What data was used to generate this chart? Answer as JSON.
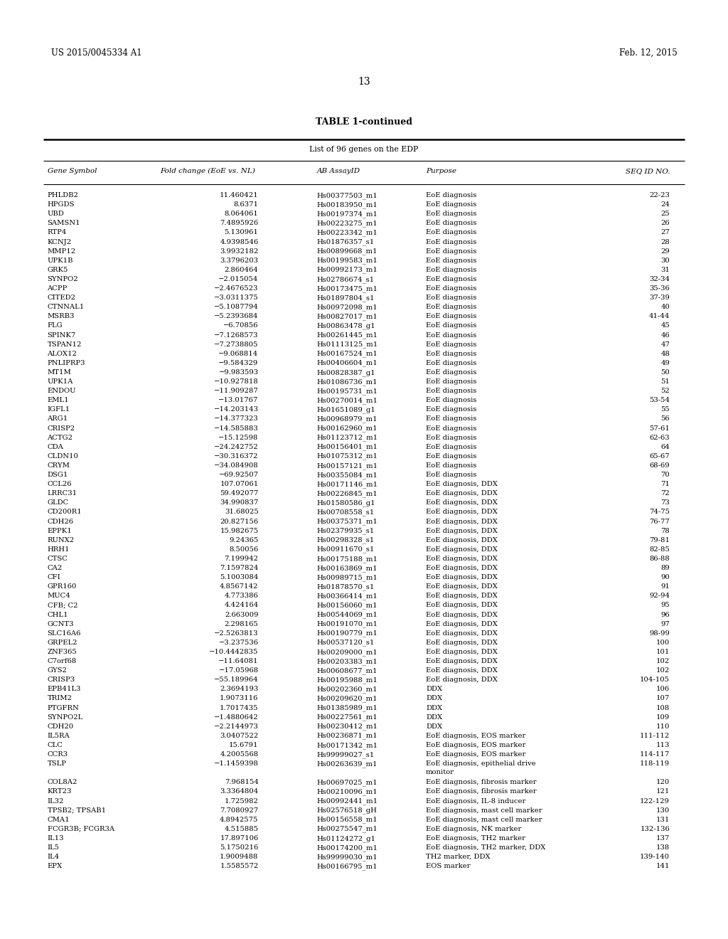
{
  "header_left": "US 2015/0045334 A1",
  "header_right": "Feb. 12, 2015",
  "page_number": "13",
  "table_title": "TABLE 1-continued",
  "table_subtitle": "List of 96 genes on the EDP",
  "col_headers": [
    "Gene Symbol",
    "Fold change (EoE vs. NL)",
    "AB AssayID",
    "Purpose",
    "SEQ ID NO."
  ],
  "rows": [
    [
      "PHLDB2",
      "11.460421",
      "Hs00377503_m1",
      "EoE diagnosis",
      "22-23"
    ],
    [
      "HPGDS",
      "8.6371",
      "Hs00183950_m1",
      "EoE diagnosis",
      "24"
    ],
    [
      "UBD",
      "8.064061",
      "Hs00197374_m1",
      "EoE diagnosis",
      "25"
    ],
    [
      "SAMSN1",
      "7.4895926",
      "Hs00223275_m1",
      "EoE diagnosis",
      "26"
    ],
    [
      "RTP4",
      "5.130961",
      "Hs00223342_m1",
      "EoE diagnosis",
      "27"
    ],
    [
      "KCNJ2",
      "4.9398546",
      "Hs01876357_s1",
      "EoE diagnosis",
      "28"
    ],
    [
      "MMP12",
      "3.9932182",
      "Hs00899668_m1",
      "EoE diagnosis",
      "29"
    ],
    [
      "UPK1B",
      "3.3796203",
      "Hs00199583_m1",
      "EoE diagnosis",
      "30"
    ],
    [
      "GRK5",
      "2.860464",
      "Hs00992173_m1",
      "EoE diagnosis",
      "31"
    ],
    [
      "SYNPO2",
      "−2.015054",
      "Hs02786674_s1",
      "EoE diagnosis",
      "32-34"
    ],
    [
      "ACPP",
      "−2.4676523",
      "Hs00173475_m1",
      "EoE diagnosis",
      "35-36"
    ],
    [
      "CITED2",
      "−3.0311375",
      "Hs01897804_s1",
      "EoE diagnosis",
      "37-39"
    ],
    [
      "CTNNAL1",
      "−5.1087794",
      "Hs00972098_m1",
      "EoE diagnosis",
      "40"
    ],
    [
      "MSRB3",
      "−5.2393684",
      "Hs00827017_m1",
      "EoE diagnosis",
      "41-44"
    ],
    [
      "FLG",
      "−6.70856",
      "Hs00863478_g1",
      "EoE diagnosis",
      "45"
    ],
    [
      "SPINK7",
      "−7.1268573",
      "Hs00261445_m1",
      "EoE diagnosis",
      "46"
    ],
    [
      "TSPAN12",
      "−7.2738805",
      "Hs01113125_m1",
      "EoE diagnosis",
      "47"
    ],
    [
      "ALOX12",
      "−9.068814",
      "Hs00167524_m1",
      "EoE diagnosis",
      "48"
    ],
    [
      "PNLIPRP3",
      "−9.584329",
      "Hs00406604_m1",
      "EoE diagnosis",
      "49"
    ],
    [
      "MT1M",
      "−9.983593",
      "Hs00828387_g1",
      "EoE diagnosis",
      "50"
    ],
    [
      "UPK1A",
      "−10.927818",
      "Hs01086736_m1",
      "EoE diagnosis",
      "51"
    ],
    [
      "ENDOU",
      "−11.909287",
      "Hs00195731_m1",
      "EoE diagnosis",
      "52"
    ],
    [
      "EML1",
      "−13.01767",
      "Hs00270014_m1",
      "EoE diagnosis",
      "53-54"
    ],
    [
      "IGFL1",
      "−14.203143",
      "Hs01651089_g1",
      "EoE diagnosis",
      "55"
    ],
    [
      "ARG1",
      "−14.377323",
      "Hs00968979_m1",
      "EoE diagnosis",
      "56"
    ],
    [
      "CRISP2",
      "−14.585883",
      "Hs00162960_m1",
      "EoE diagnosis",
      "57-61"
    ],
    [
      "ACTG2",
      "−15.12598",
      "Hs01123712_m1",
      "EoE diagnosis",
      "62-63"
    ],
    [
      "CDA",
      "−24.242752",
      "Hs00156401_m1",
      "EoE diagnosis",
      "64"
    ],
    [
      "CLDN10",
      "−30.316372",
      "Hs01075312_m1",
      "EoE diagnosis",
      "65-67"
    ],
    [
      "CRYM",
      "−34.084908",
      "Hs00157121_m1",
      "EoE diagnosis",
      "68-69"
    ],
    [
      "DSG1",
      "−69.92507",
      "Hs00355084_m1",
      "EoE diagnosis",
      "70"
    ],
    [
      "CCL26",
      "107.07061",
      "Hs00171146_m1",
      "EoE diagnosis, DDX",
      "71"
    ],
    [
      "LRRC31",
      "59.492077",
      "Hs00226845_m1",
      "EoE diagnosis, DDX",
      "72"
    ],
    [
      "GLDC",
      "34.990837",
      "Hs01580586_g1",
      "EoE diagnosis, DDX",
      "73"
    ],
    [
      "CD200R1",
      "31.68025",
      "Hs00708558_s1",
      "EoE diagnosis, DDX",
      "74-75"
    ],
    [
      "CDH26",
      "20.827156",
      "Hs00375371_m1",
      "EoE diagnosis, DDX",
      "76-77"
    ],
    [
      "EPPK1",
      "15.982675",
      "Hs02379935_s1",
      "EoE diagnosis, DDX",
      "78"
    ],
    [
      "RUNX2",
      "9.24365",
      "Hs00298328_s1",
      "EoE diagnosis, DDX",
      "79-81"
    ],
    [
      "HRH1",
      "8.50056",
      "Hs00911670_s1",
      "EoE diagnosis, DDX",
      "82-85"
    ],
    [
      "CTSC",
      "7.199942",
      "Hs00175188_m1",
      "EoE diagnosis, DDX",
      "86-88"
    ],
    [
      "CA2",
      "7.1597824",
      "Hs00163869_m1",
      "EoE diagnosis, DDX",
      "89"
    ],
    [
      "CFI",
      "5.1003084",
      "Hs00989715_m1",
      "EoE diagnosis, DDX",
      "90"
    ],
    [
      "GPR160",
      "4.8567142",
      "Hs01878570_s1",
      "EoE diagnosis, DDX",
      "91"
    ],
    [
      "MUC4",
      "4.773386",
      "Hs00366414_m1",
      "EoE diagnosis, DDX",
      "92-94"
    ],
    [
      "CFB; C2",
      "4.424164",
      "Hs00156060_m1",
      "EoE diagnosis, DDX",
      "95"
    ],
    [
      "CHL1",
      "2.663009",
      "Hs00544069_m1",
      "EoE diagnosis, DDX",
      "96"
    ],
    [
      "GCNT3",
      "2.298165",
      "Hs00191070_m1",
      "EoE diagnosis, DDX",
      "97"
    ],
    [
      "SLC16A6",
      "−2.5263813",
      "Hs00190779_m1",
      "EoE diagnosis, DDX",
      "98-99"
    ],
    [
      "GRPEL2",
      "−3.237536",
      "Hs00537120_s1",
      "EoE diagnosis, DDX",
      "100"
    ],
    [
      "ZNF365",
      "−10.4442835",
      "Hs00209000_m1",
      "EoE diagnosis, DDX",
      "101"
    ],
    [
      "C7orf68",
      "−11.64081",
      "Hs00203383_m1",
      "EoE diagnosis, DDX",
      "102"
    ],
    [
      "GYS2",
      "−17.05968",
      "Hs00608677_m1",
      "EoE diagnosis, DDX",
      "102"
    ],
    [
      "CRISP3",
      "−55.189964",
      "Hs00195988_m1",
      "EoE diagnosis, DDX",
      "104-105"
    ],
    [
      "EPB41L3",
      "2.3694193",
      "Hs00202360_m1",
      "DDX",
      "106"
    ],
    [
      "TRIM2",
      "1.9073116",
      "Hs00209620_m1",
      "DDX",
      "107"
    ],
    [
      "PTGFRN",
      "1.7017435",
      "Hs01385989_m1",
      "DDX",
      "108"
    ],
    [
      "SYNPO2L",
      "−1.4880642",
      "Hs00227561_m1",
      "DDX",
      "109"
    ],
    [
      "CDH20",
      "−2.2144973",
      "Hs00230412_m1",
      "DDX",
      "110"
    ],
    [
      "IL5RA",
      "3.0407522",
      "Hs00236871_m1",
      "EoE diagnosis, EOS marker",
      "111-112"
    ],
    [
      "CLC",
      "15.6791",
      "Hs00171342_m1",
      "EoE diagnosis, EOS marker",
      "113"
    ],
    [
      "CCR3",
      "4.2005568",
      "Hs99999027_s1",
      "EoE diagnosis, EOS marker",
      "114-117"
    ],
    [
      "TSLP",
      "−1.1459398",
      "Hs00263639_m1",
      "EoE diagnosis, epithelial drive\nmonitor",
      "118-119"
    ],
    [
      "COL8A2",
      "7.968154",
      "Hs00697025_m1",
      "EoE diagnosis, fibrosis marker",
      "120"
    ],
    [
      "KRT23",
      "3.3364804",
      "Hs00210096_m1",
      "EoE diagnosis, fibrosis marker",
      "121"
    ],
    [
      "IL32",
      "1.725982",
      "Hs00992441_m1",
      "EoE diagnosis, IL-8 inducer",
      "122-129"
    ],
    [
      "TPSB2; TPSAB1",
      "7.7080927",
      "Hs02576518_gH",
      "EoE diagnosis, mast cell marker",
      "130"
    ],
    [
      "CMA1",
      "4.8942575",
      "Hs00156558_m1",
      "EoE diagnosis, mast cell marker",
      "131"
    ],
    [
      "FCGR3B; FCGR3A",
      "4.515885",
      "Hs00275547_m1",
      "EoE diagnosis, NK marker",
      "132-136"
    ],
    [
      "IL13",
      "17.897106",
      "Hs01124272_g1",
      "EoE diagnosis, TH2 marker",
      "137"
    ],
    [
      "IL5",
      "5.1750216",
      "Hs00174200_m1",
      "EoE diagnosis, TH2 marker, DDX",
      "138"
    ],
    [
      "IL4",
      "1.9009488",
      "Hs99999030_m1",
      "TH2 marker, DDX",
      "139-140"
    ],
    [
      "EPX",
      "1.5585572",
      "Hs00166795_m1",
      "EOS marker",
      "141"
    ]
  ],
  "bg_color": "#ffffff",
  "text_color": "#000000",
  "font_size_header": 8.5,
  "font_size_body": 7.2,
  "font_size_title": 9.0,
  "font_size_page": 10.0
}
